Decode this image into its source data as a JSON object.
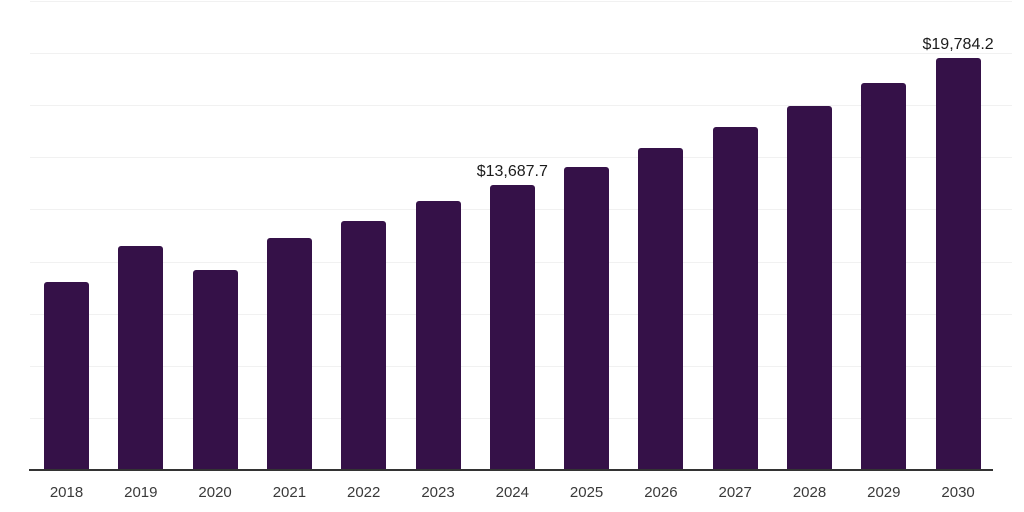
{
  "chart_data": {
    "type": "bar",
    "title": "",
    "xlabel": "",
    "ylabel": "",
    "categories": [
      "2018",
      "2019",
      "2020",
      "2021",
      "2022",
      "2023",
      "2024",
      "2025",
      "2026",
      "2027",
      "2028",
      "2029",
      "2030"
    ],
    "values": [
      9030,
      10750,
      9590,
      11150,
      11950,
      12900,
      13687.7,
      14550,
      15460,
      16440,
      17460,
      18580,
      19784.2
    ],
    "data_labels": {
      "2024": "$13,687.7",
      "2030": "$19,784.2"
    },
    "ylim": [
      0,
      22500
    ],
    "gridline_step": 2500,
    "grid": true,
    "legend": false,
    "y_axis_labels_visible": false,
    "colors": {
      "bar": "#351148",
      "axis_line": "#333333",
      "gridline": "#f1f1f1",
      "tick_label": "#3a3a3a",
      "data_label": "#1c1c1c",
      "background": "#ffffff"
    }
  }
}
